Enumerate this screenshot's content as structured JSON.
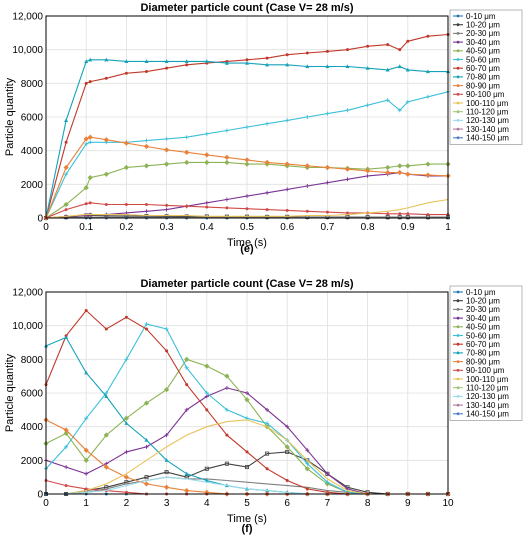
{
  "chart_data": [
    {
      "type": "line",
      "title": "Diameter particle count (Case V= 28 m/s)",
      "caption": "(e)",
      "xlabel": "Time (s)",
      "ylabel": "Particle quantity",
      "xlim": [
        0,
        1
      ],
      "ylim": [
        0,
        12000
      ],
      "xticks": [
        "0",
        "0.1",
        "0.2",
        "0.3",
        "0.4",
        "0.5",
        "0.6",
        "0.7",
        "0.8",
        "0.9",
        "1"
      ],
      "yticks": [
        "0",
        "2000",
        "4000",
        "6000",
        "8000",
        "10,000",
        "12,000"
      ],
      "grid": true,
      "legend_position": "right",
      "x": [
        0,
        0.05,
        0.1,
        0.11,
        0.15,
        0.2,
        0.25,
        0.3,
        0.35,
        0.4,
        0.45,
        0.5,
        0.55,
        0.6,
        0.65,
        0.7,
        0.75,
        0.8,
        0.85,
        0.88,
        0.9,
        0.95,
        1.0
      ],
      "series": [
        {
          "name": "0-10 μm",
          "color": "#1f77b4",
          "values": [
            0,
            0,
            0,
            0,
            0,
            0,
            0,
            0,
            0,
            0,
            0,
            0,
            0,
            0,
            0,
            0,
            0,
            0,
            0,
            0,
            0,
            0,
            0
          ]
        },
        {
          "name": "10-20 μm",
          "color": "#404040",
          "values": [
            0,
            50,
            150,
            150,
            130,
            120,
            110,
            100,
            90,
            90,
            80,
            80,
            70,
            70,
            60,
            60,
            60,
            50,
            50,
            50,
            50,
            50,
            50
          ]
        },
        {
          "name": "20-30 μm",
          "color": "#7f7f7f",
          "values": [
            0,
            20,
            40,
            40,
            40,
            40,
            40,
            40,
            40,
            40,
            40,
            40,
            40,
            40,
            40,
            40,
            40,
            40,
            40,
            40,
            40,
            40,
            40
          ]
        },
        {
          "name": "30-40 μm",
          "color": "#7b3294",
          "values": [
            0,
            100,
            150,
            200,
            200,
            300,
            400,
            500,
            700,
            900,
            1100,
            1300,
            1500,
            1700,
            1900,
            2100,
            2300,
            2500,
            2600,
            2700,
            2600,
            2500,
            2500
          ]
        },
        {
          "name": "40-50 μm",
          "color": "#8db356",
          "values": [
            0,
            800,
            1800,
            2400,
            2600,
            3000,
            3100,
            3200,
            3300,
            3300,
            3300,
            3200,
            3200,
            3100,
            3000,
            3000,
            2950,
            2900,
            3000,
            3100,
            3100,
            3200,
            3200
          ]
        },
        {
          "name": "50-60 μm",
          "color": "#3cc0d8",
          "values": [
            0,
            2600,
            4400,
            4500,
            4500,
            4500,
            4600,
            4700,
            4800,
            5000,
            5200,
            5400,
            5600,
            5800,
            6000,
            6200,
            6400,
            6700,
            7000,
            6400,
            6900,
            7200,
            7500
          ]
        },
        {
          "name": "60-70 μm",
          "color": "#c0392b",
          "values": [
            0,
            4500,
            8000,
            8100,
            8300,
            8600,
            8700,
            8900,
            9100,
            9200,
            9300,
            9400,
            9500,
            9700,
            9800,
            9900,
            10000,
            10200,
            10300,
            10000,
            10500,
            10800,
            10900
          ]
        },
        {
          "name": "70-80 μm",
          "color": "#17a2b8",
          "values": [
            0,
            5800,
            9300,
            9400,
            9400,
            9300,
            9300,
            9300,
            9300,
            9300,
            9200,
            9200,
            9100,
            9100,
            9000,
            9000,
            9000,
            8900,
            8800,
            9000,
            8800,
            8700,
            8700
          ]
        },
        {
          "name": "80-90 μm",
          "color": "#e8823a",
          "values": [
            0,
            3000,
            4700,
            4800,
            4650,
            4450,
            4250,
            4050,
            3900,
            3750,
            3600,
            3450,
            3300,
            3200,
            3100,
            3000,
            2900,
            2800,
            2700,
            2700,
            2600,
            2550,
            2500
          ]
        },
        {
          "name": "90-100 μm",
          "color": "#d14a4a",
          "values": [
            0,
            500,
            850,
            900,
            800,
            800,
            800,
            750,
            700,
            650,
            600,
            550,
            500,
            450,
            400,
            350,
            300,
            300,
            250,
            250,
            250,
            200,
            200
          ]
        },
        {
          "name": "100-110 μm",
          "color": "#e8c35a",
          "values": [
            0,
            100,
            200,
            200,
            200,
            200,
            150,
            150,
            150,
            100,
            100,
            100,
            100,
            100,
            150,
            150,
            200,
            300,
            400,
            500,
            600,
            900,
            1100
          ]
        },
        {
          "name": "110-120 μm",
          "color": "#a0c878",
          "values": [
            0,
            0,
            0,
            0,
            0,
            0,
            0,
            0,
            0,
            0,
            0,
            0,
            0,
            0,
            0,
            0,
            0,
            0,
            0,
            0,
            0,
            0,
            0
          ]
        },
        {
          "name": "120-130 μm",
          "color": "#9bdcec",
          "values": [
            0,
            0,
            0,
            0,
            0,
            0,
            0,
            0,
            0,
            0,
            0,
            0,
            0,
            0,
            0,
            0,
            0,
            0,
            0,
            0,
            0,
            0,
            0
          ]
        },
        {
          "name": "130-140 μm",
          "color": "#b07aa1",
          "values": [
            0,
            0,
            0,
            0,
            0,
            0,
            0,
            0,
            0,
            0,
            0,
            0,
            0,
            0,
            0,
            0,
            0,
            0,
            0,
            0,
            0,
            0,
            0
          ]
        },
        {
          "name": "140-150 μm",
          "color": "#4a7fc1",
          "values": [
            0,
            0,
            0,
            0,
            0,
            0,
            0,
            0,
            0,
            0,
            0,
            0,
            0,
            0,
            0,
            0,
            0,
            0,
            0,
            0,
            0,
            0,
            0
          ]
        }
      ]
    },
    {
      "type": "line",
      "title": "Diameter particle count (Case V= 28 m/s)",
      "caption": "(f)",
      "xlabel": "Time (s)",
      "ylabel": "Particle quantity",
      "xlim": [
        0,
        10
      ],
      "ylim": [
        0,
        12000
      ],
      "xticks": [
        "0",
        "1",
        "2",
        "3",
        "4",
        "5",
        "6",
        "7",
        "8",
        "9",
        "10"
      ],
      "yticks": [
        "0",
        "2000",
        "4000",
        "6000",
        "8000",
        "10,000",
        "12,000"
      ],
      "grid": true,
      "legend_position": "right",
      "x": [
        0,
        0.5,
        1,
        1.5,
        2,
        2.5,
        3,
        3.5,
        4,
        4.5,
        5,
        5.5,
        6,
        6.5,
        7,
        7.5,
        8,
        8.5,
        9,
        9.5,
        10
      ],
      "series": [
        {
          "name": "0-10 μm",
          "color": "#1f77b4",
          "values": [
            0,
            0,
            0,
            0,
            0,
            0,
            0,
            0,
            0,
            0,
            0,
            0,
            0,
            0,
            0,
            0,
            0,
            0,
            0,
            0,
            0
          ]
        },
        {
          "name": "10-20 μm",
          "color": "#404040",
          "values": [
            0,
            0,
            200,
            400,
            700,
            1000,
            1300,
            1000,
            1500,
            1800,
            1600,
            2400,
            2500,
            2000,
            1200,
            400,
            100,
            0,
            0,
            0,
            0
          ]
        },
        {
          "name": "20-30 μm",
          "color": "#7f7f7f",
          "values": [
            0,
            0,
            100,
            300,
            600,
            800,
            1000,
            900,
            900,
            800,
            700,
            600,
            500,
            400,
            200,
            100,
            0,
            0,
            0,
            0,
            0
          ]
        },
        {
          "name": "30-40 μm",
          "color": "#7b3294",
          "values": [
            2000,
            1600,
            1200,
            1800,
            2500,
            2800,
            3500,
            5000,
            5800,
            6300,
            6000,
            5000,
            4000,
            2600,
            1200,
            300,
            0,
            0,
            0,
            0,
            0
          ]
        },
        {
          "name": "40-50 μm",
          "color": "#8db356",
          "values": [
            3000,
            3600,
            2000,
            3500,
            4500,
            5400,
            6200,
            8000,
            7600,
            7000,
            5600,
            4000,
            2800,
            1500,
            600,
            100,
            0,
            0,
            0,
            0,
            0
          ]
        },
        {
          "name": "50-60 μm",
          "color": "#3cc0d8",
          "values": [
            1500,
            2800,
            4500,
            6000,
            8000,
            10100,
            9800,
            7500,
            6000,
            5000,
            4500,
            4200,
            3200,
            1800,
            700,
            100,
            0,
            0,
            0,
            0,
            0
          ]
        },
        {
          "name": "60-70 μm",
          "color": "#c0392b",
          "values": [
            6500,
            9400,
            10900,
            9800,
            10500,
            9800,
            8500,
            6500,
            5000,
            3500,
            2500,
            1500,
            800,
            300,
            100,
            0,
            0,
            0,
            0,
            0,
            0
          ]
        },
        {
          "name": "70-80 μm",
          "color": "#17a2b8",
          "values": [
            8800,
            9300,
            7200,
            5800,
            4200,
            3200,
            2000,
            1200,
            800,
            500,
            300,
            200,
            100,
            0,
            0,
            0,
            0,
            0,
            0,
            0,
            0
          ]
        },
        {
          "name": "80-90 μm",
          "color": "#e8823a",
          "values": [
            4400,
            3800,
            2600,
            1600,
            1000,
            600,
            400,
            200,
            100,
            0,
            0,
            0,
            0,
            0,
            0,
            0,
            0,
            0,
            0,
            0,
            0
          ]
        },
        {
          "name": "90-100 μm",
          "color": "#d14a4a",
          "values": [
            800,
            500,
            300,
            200,
            100,
            0,
            0,
            0,
            0,
            0,
            0,
            0,
            0,
            0,
            0,
            0,
            0,
            0,
            0,
            0,
            0
          ]
        },
        {
          "name": "100-110 μm",
          "color": "#e8c35a",
          "values": [
            0,
            0,
            200,
            600,
            1200,
            2000,
            2800,
            3500,
            4000,
            4300,
            4400,
            4000,
            3200,
            2000,
            900,
            200,
            0,
            0,
            0,
            0,
            0
          ]
        },
        {
          "name": "110-120 μm",
          "color": "#a0c878",
          "values": [
            0,
            0,
            0,
            0,
            0,
            0,
            0,
            0,
            0,
            0,
            0,
            0,
            0,
            0,
            0,
            0,
            0,
            0,
            0,
            0,
            0
          ]
        },
        {
          "name": "120-130 μm",
          "color": "#9bdcec",
          "values": [
            0,
            0,
            100,
            200,
            500,
            800,
            1000,
            900,
            700,
            500,
            300,
            200,
            100,
            0,
            0,
            0,
            0,
            0,
            0,
            0,
            0
          ]
        },
        {
          "name": "130-140 μm",
          "color": "#b07aa1",
          "values": [
            0,
            0,
            0,
            0,
            0,
            0,
            0,
            0,
            0,
            0,
            0,
            0,
            0,
            0,
            0,
            0,
            0,
            0,
            0,
            0,
            0
          ]
        },
        {
          "name": "140-150 μm",
          "color": "#4a7fc1",
          "values": [
            0,
            0,
            0,
            0,
            0,
            0,
            0,
            0,
            0,
            0,
            0,
            0,
            0,
            0,
            0,
            0,
            0,
            0,
            0,
            0,
            0
          ]
        }
      ]
    }
  ]
}
